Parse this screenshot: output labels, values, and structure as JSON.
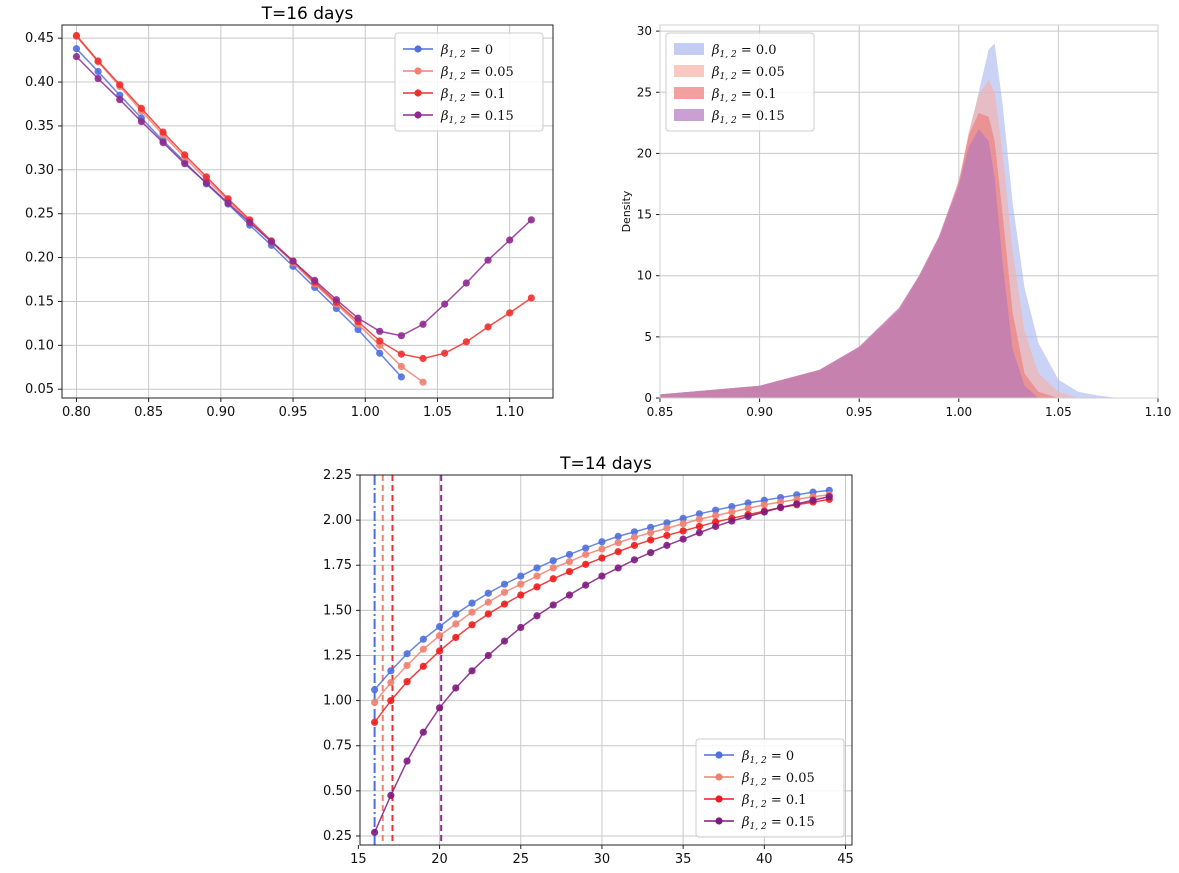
{
  "chart_data": [
    {
      "type": "line",
      "title": "T=16 days",
      "xlim": [
        0.79,
        1.13
      ],
      "ylim": [
        0.04,
        0.465
      ],
      "xticks": [
        0.8,
        0.85,
        0.9,
        0.95,
        1.0,
        1.05,
        1.1
      ],
      "yticks": [
        0.05,
        0.1,
        0.15,
        0.2,
        0.25,
        0.3,
        0.35,
        0.4,
        0.45
      ],
      "grid": true,
      "legend_position": "top-right",
      "series": [
        {
          "name": "β1,2 = 0",
          "color": "#4f6fdf",
          "x": [
            0.8,
            0.815,
            0.83,
            0.845,
            0.86,
            0.875,
            0.89,
            0.905,
            0.92,
            0.935,
            0.95,
            0.965,
            0.98,
            0.995,
            1.01,
            1.025
          ],
          "y": [
            0.438,
            0.412,
            0.385,
            0.359,
            0.333,
            0.309,
            0.284,
            0.261,
            0.237,
            0.214,
            0.19,
            0.166,
            0.142,
            0.118,
            0.091,
            0.064
          ]
        },
        {
          "name": "β1,2 = 0.05",
          "color": "#f08070",
          "x": [
            0.8,
            0.815,
            0.83,
            0.845,
            0.86,
            0.875,
            0.89,
            0.905,
            0.92,
            0.935,
            0.95,
            0.965,
            0.98,
            0.995,
            1.01,
            1.025,
            1.04
          ],
          "y": [
            0.452,
            0.423,
            0.395,
            0.367,
            0.34,
            0.314,
            0.289,
            0.265,
            0.241,
            0.218,
            0.194,
            0.17,
            0.147,
            0.124,
            0.1,
            0.076,
            0.058
          ]
        },
        {
          "name": "β1,2 = 0.1",
          "color": "#ee3030",
          "x": [
            0.8,
            0.815,
            0.83,
            0.845,
            0.86,
            0.875,
            0.89,
            0.905,
            0.92,
            0.935,
            0.95,
            0.965,
            0.98,
            0.995,
            1.01,
            1.025,
            1.04,
            1.055,
            1.07,
            1.085,
            1.1,
            1.115
          ],
          "y": [
            0.453,
            0.424,
            0.397,
            0.37,
            0.343,
            0.317,
            0.292,
            0.267,
            0.243,
            0.219,
            0.196,
            0.172,
            0.149,
            0.127,
            0.105,
            0.09,
            0.085,
            0.091,
            0.104,
            0.121,
            0.137,
            0.154
          ]
        },
        {
          "name": "β1,2 = 0.15",
          "color": "#8e2a90",
          "x": [
            0.8,
            0.815,
            0.83,
            0.845,
            0.86,
            0.875,
            0.89,
            0.905,
            0.92,
            0.935,
            0.95,
            0.965,
            0.98,
            0.995,
            1.01,
            1.025,
            1.04,
            1.055,
            1.07,
            1.085,
            1.1,
            1.115
          ],
          "y": [
            0.429,
            0.404,
            0.38,
            0.355,
            0.331,
            0.307,
            0.285,
            0.262,
            0.24,
            0.218,
            0.196,
            0.174,
            0.152,
            0.131,
            0.116,
            0.111,
            0.124,
            0.147,
            0.171,
            0.197,
            0.22,
            0.243
          ]
        }
      ]
    },
    {
      "type": "area",
      "subtype": "histogram-density",
      "title": "",
      "xlabel": "",
      "ylabel": "Density",
      "xlim": [
        0.85,
        1.1
      ],
      "ylim": [
        0,
        30.5
      ],
      "xticks": [
        0.85,
        0.9,
        0.95,
        1.0,
        1.05,
        1.1
      ],
      "yticks": [
        0,
        5,
        10,
        15,
        20,
        25,
        30
      ],
      "grid": true,
      "legend_position": "top-left",
      "series": [
        {
          "name": "β1,2 = 0.0",
          "color": "#a9b8f0",
          "x": [
            0.85,
            0.9,
            0.93,
            0.95,
            0.97,
            0.98,
            0.99,
            1.0,
            1.005,
            1.01,
            1.015,
            1.018,
            1.022,
            1.027,
            1.033,
            1.04,
            1.05,
            1.06,
            1.07,
            1.08
          ],
          "y": [
            0.3,
            1.0,
            2.2,
            4.0,
            7.0,
            9.7,
            12.8,
            17.0,
            21.5,
            25.0,
            28.5,
            29.0,
            24.0,
            16.0,
            9.0,
            4.5,
            1.5,
            0.5,
            0.2,
            0
          ]
        },
        {
          "name": "β1,2 = 0.05",
          "color": "#f7b0a5",
          "x": [
            0.85,
            0.9,
            0.93,
            0.95,
            0.97,
            0.98,
            0.99,
            1.0,
            1.005,
            1.01,
            1.015,
            1.018,
            1.022,
            1.027,
            1.033,
            1.04,
            1.05,
            1.06
          ],
          "y": [
            0.3,
            1.0,
            2.3,
            4.1,
            7.2,
            9.9,
            13.0,
            17.5,
            21.8,
            24.8,
            26.0,
            25.0,
            20.0,
            12.0,
            5.5,
            2.0,
            0.5,
            0
          ]
        },
        {
          "name": "β1,2 = 0.1",
          "color": "#ee7777",
          "x": [
            0.85,
            0.9,
            0.93,
            0.95,
            0.97,
            0.98,
            0.99,
            1.0,
            1.005,
            1.01,
            1.015,
            1.018,
            1.022,
            1.027,
            1.033,
            1.04,
            1.05
          ],
          "y": [
            0.3,
            1.0,
            2.3,
            4.2,
            7.3,
            10.0,
            13.2,
            17.8,
            21.5,
            23.3,
            23.0,
            21.0,
            15.0,
            7.0,
            2.0,
            0.5,
            0
          ]
        },
        {
          "name": "β1,2 = 0.15",
          "color": "#b277bd",
          "x": [
            0.85,
            0.9,
            0.93,
            0.95,
            0.97,
            0.98,
            0.99,
            1.0,
            1.005,
            1.01,
            1.015,
            1.018,
            1.022,
            1.027,
            1.033,
            1.04
          ],
          "y": [
            0.3,
            1.0,
            2.3,
            4.2,
            7.4,
            10.0,
            13.2,
            17.5,
            20.5,
            22.0,
            21.0,
            18.0,
            11.0,
            4.0,
            1.0,
            0
          ]
        }
      ]
    },
    {
      "type": "line",
      "title": "T=14 days",
      "xlim": [
        15.1,
        45.4
      ],
      "ylim": [
        0.2,
        2.25
      ],
      "xticks": [
        15,
        20,
        25,
        30,
        35,
        40,
        45
      ],
      "yticks": [
        0.25,
        0.5,
        0.75,
        1.0,
        1.25,
        1.5,
        1.75,
        2.0,
        2.25
      ],
      "grid": true,
      "legend_position": "bottom-right",
      "vlines": [
        {
          "x": 16.0,
          "color": "#4f6fdf",
          "style": "dashdot"
        },
        {
          "x": 16.5,
          "color": "#f08070",
          "style": "dashed"
        },
        {
          "x": 17.1,
          "color": "#ee3030",
          "style": "dashed"
        },
        {
          "x": 20.1,
          "color": "#8e2a90",
          "style": "dashed"
        }
      ],
      "series": [
        {
          "name": "β1,2 = 0",
          "color": "#4f6fdf",
          "x": [
            16,
            17,
            18,
            19,
            20,
            21,
            22,
            23,
            24,
            25,
            26,
            27,
            28,
            29,
            30,
            31,
            32,
            33,
            34,
            35,
            36,
            37,
            38,
            39,
            40,
            41,
            42,
            43,
            44
          ],
          "y": [
            1.06,
            1.165,
            1.26,
            1.34,
            1.41,
            1.48,
            1.54,
            1.595,
            1.645,
            1.69,
            1.735,
            1.775,
            1.81,
            1.845,
            1.88,
            1.91,
            1.935,
            1.96,
            1.985,
            2.01,
            2.035,
            2.055,
            2.075,
            2.095,
            2.11,
            2.125,
            2.14,
            2.155,
            2.165
          ]
        },
        {
          "name": "β1,2 = 0.05",
          "color": "#f08070",
          "x": [
            16,
            17,
            18,
            19,
            20,
            21,
            22,
            23,
            24,
            25,
            26,
            27,
            28,
            29,
            30,
            31,
            32,
            33,
            34,
            35,
            36,
            37,
            38,
            39,
            40,
            41,
            42,
            43,
            44
          ],
          "y": [
            0.99,
            1.1,
            1.195,
            1.285,
            1.36,
            1.425,
            1.49,
            1.545,
            1.6,
            1.645,
            1.69,
            1.735,
            1.77,
            1.81,
            1.84,
            1.875,
            1.905,
            1.93,
            1.955,
            1.98,
            2.005,
            2.025,
            2.045,
            2.065,
            2.085,
            2.1,
            2.115,
            2.13,
            2.14
          ]
        },
        {
          "name": "β1,2 = 0.1",
          "color": "#ee1c1c",
          "x": [
            16,
            17,
            18,
            19,
            20,
            21,
            22,
            23,
            24,
            25,
            26,
            27,
            28,
            29,
            30,
            31,
            32,
            33,
            34,
            35,
            36,
            37,
            38,
            39,
            40,
            41,
            42,
            43,
            44
          ],
          "y": [
            0.88,
            1.0,
            1.105,
            1.19,
            1.275,
            1.35,
            1.42,
            1.48,
            1.535,
            1.585,
            1.63,
            1.675,
            1.715,
            1.755,
            1.79,
            1.825,
            1.86,
            1.89,
            1.915,
            1.94,
            1.965,
            1.99,
            2.01,
            2.03,
            2.05,
            2.07,
            2.085,
            2.1,
            2.115
          ]
        },
        {
          "name": "β1,2 = 0.15",
          "color": "#7f1a80",
          "x": [
            16,
            17,
            18,
            19,
            20,
            21,
            22,
            23,
            24,
            25,
            26,
            27,
            28,
            29,
            30,
            31,
            32,
            33,
            34,
            35,
            36,
            37,
            38,
            39,
            40,
            41,
            42,
            43,
            44
          ],
          "y": [
            0.27,
            0.475,
            0.665,
            0.825,
            0.96,
            1.07,
            1.165,
            1.25,
            1.33,
            1.405,
            1.47,
            1.53,
            1.585,
            1.64,
            1.69,
            1.735,
            1.78,
            1.82,
            1.86,
            1.895,
            1.93,
            1.965,
            1.995,
            2.02,
            2.045,
            2.07,
            2.09,
            2.11,
            2.13
          ]
        }
      ]
    }
  ]
}
